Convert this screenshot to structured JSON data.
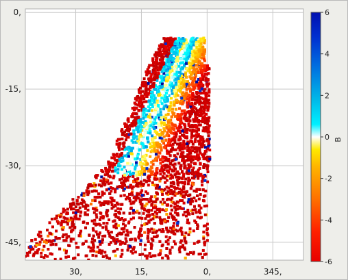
{
  "chart_data": {
    "type": "scatter",
    "title": "",
    "xlabel": "",
    "ylabel": "",
    "x_axis": {
      "ticks": [
        30,
        15,
        0,
        345
      ],
      "tick_labels": [
        "30,",
        "15,",
        "0,",
        "345,"
      ],
      "range": [
        41.5,
        338
      ],
      "wraps_at": 360,
      "direction": "decreasing-to-right"
    },
    "y_axis": {
      "ticks": [
        0,
        -15,
        -30,
        -45
      ],
      "tick_labels": [
        "0,",
        "-15,",
        "-30,",
        "-45,"
      ],
      "range": [
        -48.5,
        0.7
      ]
    },
    "grid": true,
    "colorbar": {
      "label": "B",
      "min": -6,
      "max": 6,
      "ticks": [
        6,
        4,
        2,
        0,
        -2,
        -4,
        -6
      ],
      "tick_labels": [
        "6",
        "4",
        "2",
        "0",
        "-2",
        "-4",
        "-6"
      ],
      "colormap": [
        "#b80000",
        "#e80000",
        "#ff4000",
        "#ff8a00",
        "#ffc000",
        "#ffff00",
        "#ffffff",
        "#00ffff",
        "#00b4e6",
        "#0066e0",
        "#0014c8",
        "#00006e"
      ]
    },
    "point_color_by": "B",
    "points_note": "dense cloud of several thousand points; values span roughly x 40→355 (through 0), y -48→-5; B mostly near -6 (red) with a ridge of higher values"
  }
}
